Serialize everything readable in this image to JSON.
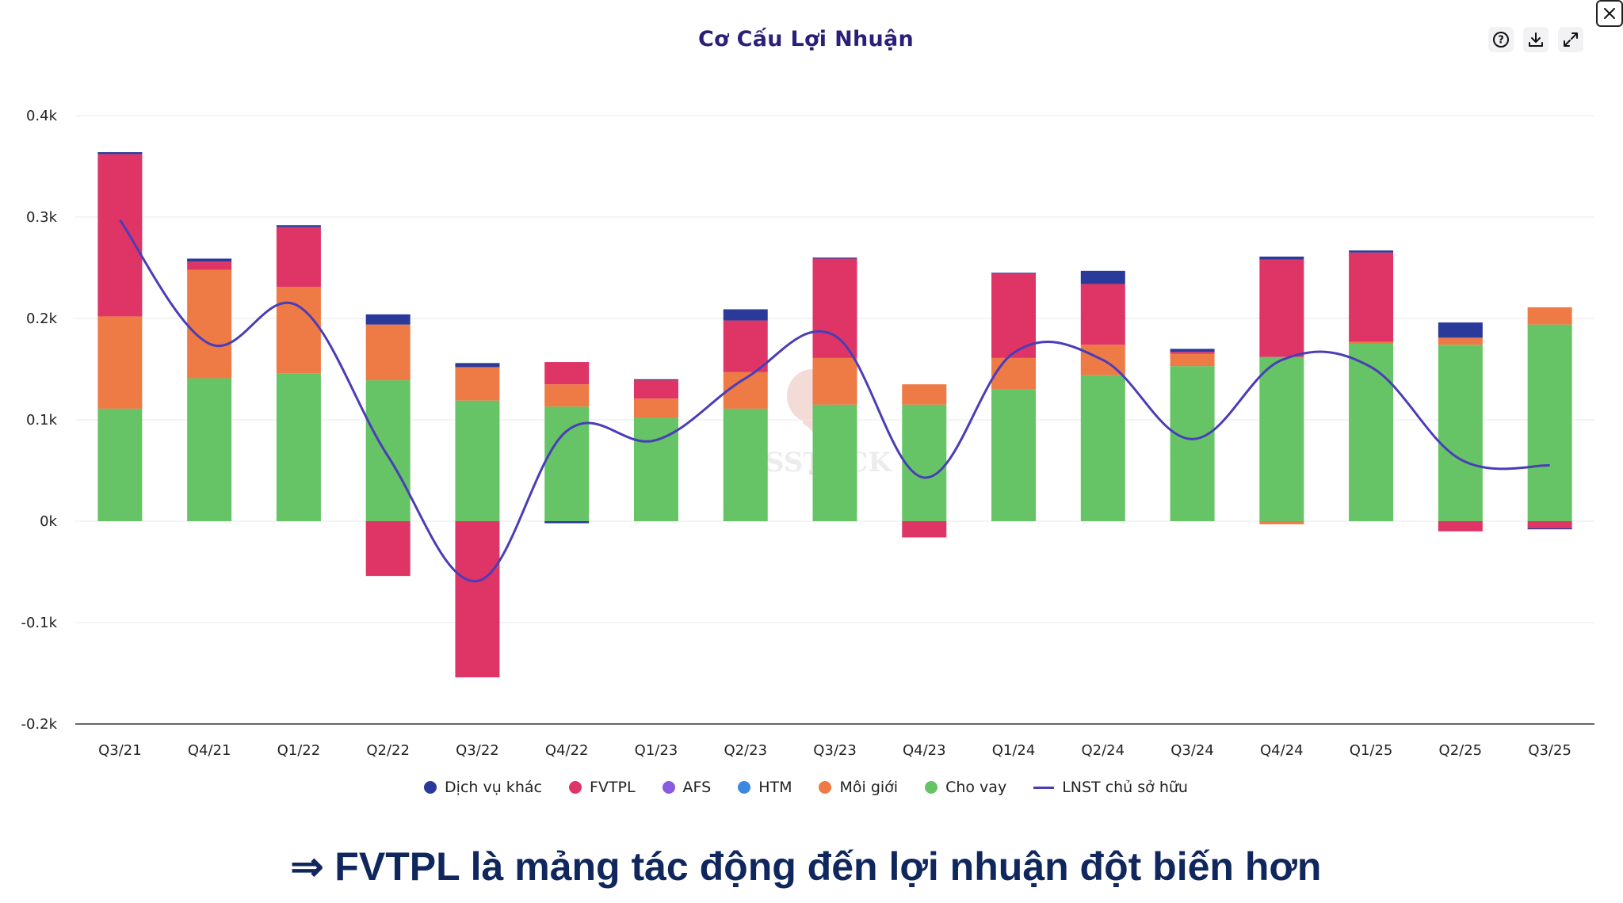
{
  "title": "Cơ Cấu Lợi Nhuận",
  "conclusion": "⇒ FVTPL là mảng tác động đến lợi nhuận đột biến hơn",
  "watermark_text": "SSTOCK",
  "toolbar": {
    "help_icon": "question-circle-icon",
    "download_icon": "download-icon",
    "expand_icon": "expand-icon",
    "close_icon": "close-icon"
  },
  "chart_data": {
    "type": "bar",
    "stacked": true,
    "categories": [
      "Q3/21",
      "Q4/21",
      "Q1/22",
      "Q2/22",
      "Q3/22",
      "Q4/22",
      "Q1/23",
      "Q2/23",
      "Q3/23",
      "Q4/23",
      "Q1/24",
      "Q2/24",
      "Q3/24",
      "Q4/24",
      "Q1/25",
      "Q2/25",
      "Q3/25"
    ],
    "ylim": [
      -0.2,
      0.4
    ],
    "yticks": [
      -0.2,
      -0.1,
      0,
      0.1,
      0.2,
      0.3,
      0.4
    ],
    "ytick_labels": [
      "-0.2k",
      "-0.1k",
      "0k",
      "0.1k",
      "0.2k",
      "0.3k",
      "0.4k"
    ],
    "grid": true,
    "legend_position": "bottom",
    "series": [
      {
        "name": "Cho vay",
        "color": "#66c466",
        "values": [
          0.111,
          0.141,
          0.146,
          0.139,
          0.119,
          0.113,
          0.102,
          0.111,
          0.115,
          0.115,
          0.13,
          0.144,
          0.153,
          0.162,
          0.175,
          0.174,
          0.194
        ]
      },
      {
        "name": "Môi giới",
        "color": "#ee7a45",
        "values": [
          0.091,
          0.107,
          0.085,
          0.055,
          0.033,
          0.022,
          0.019,
          0.036,
          0.046,
          0.02,
          0.031,
          0.03,
          0.012,
          -0.003,
          0.002,
          0.007,
          0.017
        ]
      },
      {
        "name": "AFS",
        "color": "#8a5ae0",
        "values": [
          0,
          0,
          0,
          0,
          0,
          0,
          0,
          0,
          0,
          0,
          0,
          0,
          0,
          0,
          0,
          0,
          0
        ]
      },
      {
        "name": "HTM",
        "color": "#3f88e0",
        "values": [
          0,
          0,
          0,
          0,
          0,
          0,
          0,
          0,
          0,
          0,
          0,
          0,
          0,
          0,
          0,
          0,
          0
        ]
      },
      {
        "name": "FVTPL",
        "color": "#de3566",
        "values": [
          0.16,
          0.008,
          0.059,
          -0.054,
          -0.154,
          0.022,
          0.018,
          0.051,
          0.098,
          -0.016,
          0.083,
          0.06,
          0.002,
          0.096,
          0.088,
          -0.01,
          -0.007
        ]
      },
      {
        "name": "Dịch vụ khác",
        "color": "#2a3a9a",
        "values": [
          0.002,
          0.003,
          0.002,
          0.01,
          0.004,
          -0.002,
          0.001,
          0.011,
          0.001,
          0.0,
          0.001,
          0.013,
          0.003,
          0.003,
          0.002,
          0.015,
          -0.001
        ]
      }
    ],
    "line": {
      "name": "LNST chủ sở hữu",
      "color": "#4a3db8",
      "values": [
        0.297,
        0.175,
        0.212,
        0.064,
        -0.059,
        0.089,
        0.08,
        0.141,
        0.183,
        0.043,
        0.166,
        0.159,
        0.081,
        0.159,
        0.152,
        0.061,
        0.055
      ]
    },
    "legend_order": [
      "Dịch vụ khác",
      "FVTPL",
      "AFS",
      "HTM",
      "Môi giới",
      "Cho vay",
      "LNST chủ sở hữu"
    ]
  }
}
